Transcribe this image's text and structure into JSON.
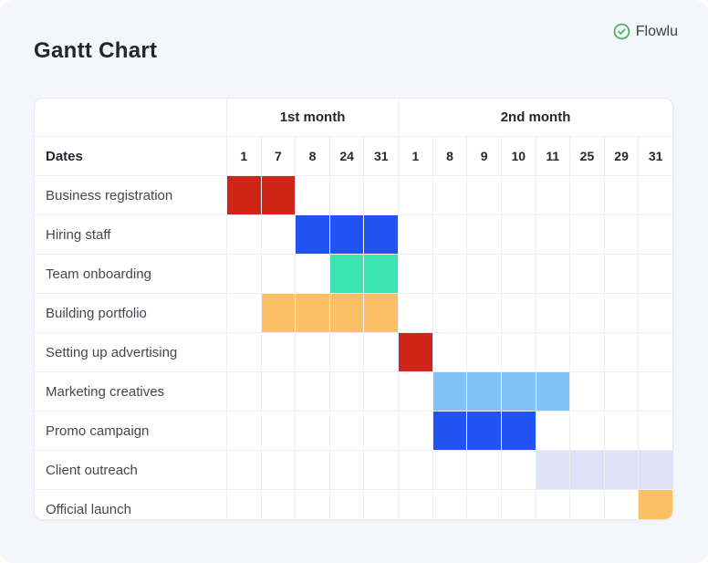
{
  "brand": {
    "name": "Flowlu",
    "icon": "check-badge-icon",
    "icon_color": "#45b35c",
    "text_color": "#3a4047"
  },
  "page_background": "#f5f6fb",
  "palette": {
    "red": "#cf2418",
    "royal_blue": "#2253f2",
    "teal": "#3ee3b4",
    "orange": "#fcbf63",
    "light_blue": "#80c3f9",
    "lavender": "#dde2f9",
    "grid_line": "#edeff4",
    "heading_text": "#23272f",
    "label_text": "#44474e"
  },
  "chart_data": {
    "type": "gantt",
    "title": "Gantt Chart",
    "dates_row_label": "Dates",
    "month_groups": [
      {
        "label": "1st month",
        "span": 5
      },
      {
        "label": "2nd month",
        "span": 8
      }
    ],
    "date_columns": [
      "1",
      "7",
      "8",
      "24",
      "31",
      "1",
      "8",
      "9",
      "10",
      "11",
      "25",
      "29",
      "31"
    ],
    "tasks": [
      {
        "name": "Business registration",
        "start": 0,
        "span": 2,
        "color": "#cf2418"
      },
      {
        "name": "Hiring staff",
        "start": 2,
        "span": 3,
        "color": "#2253f2"
      },
      {
        "name": "Team onboarding",
        "start": 3,
        "span": 2,
        "color": "#3ee3b4"
      },
      {
        "name": "Building portfolio",
        "start": 1,
        "span": 4,
        "color": "#fcbf63"
      },
      {
        "name": "Setting up advertising",
        "start": 5,
        "span": 1,
        "color": "#cf2418"
      },
      {
        "name": "Marketing creatives",
        "start": 6,
        "span": 4,
        "color": "#80c3f9"
      },
      {
        "name": "Promo campaign",
        "start": 6,
        "span": 3,
        "color": "#2253f2"
      },
      {
        "name": "Client outreach",
        "start": 9,
        "span": 4,
        "color": "#dde2f9"
      },
      {
        "name": "Official launch",
        "start": 12,
        "span": 1,
        "color": "#fcbf63"
      }
    ],
    "legend": "none",
    "grid": true
  }
}
